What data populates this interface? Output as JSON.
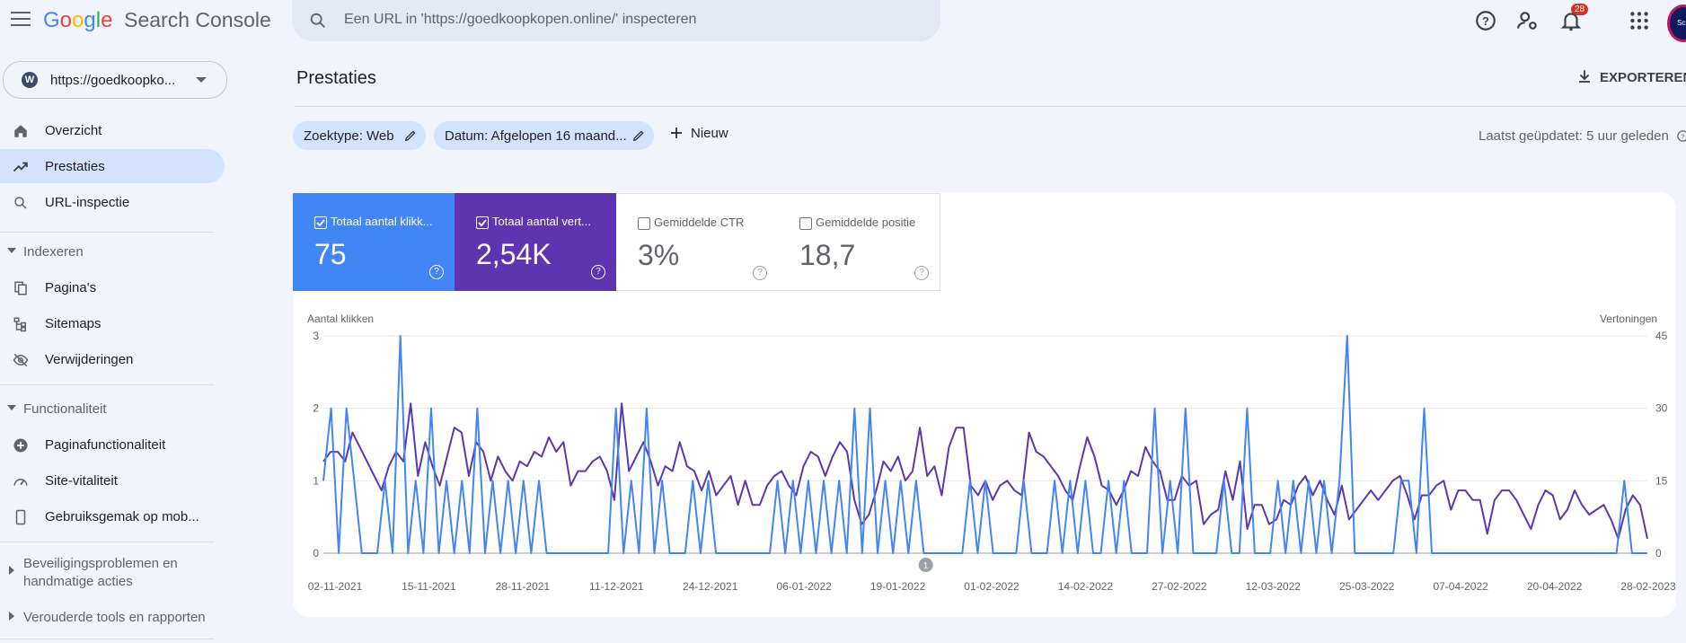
{
  "app": {
    "logo_letters": [
      "G",
      "o",
      "o",
      "g",
      "l",
      "e"
    ],
    "product": "Search Console"
  },
  "search": {
    "placeholder": "Een URL in 'https://goedkoopkopen.online/' inspecteren"
  },
  "header": {
    "notification_count": "28",
    "avatar_text": "Sch"
  },
  "property": {
    "url": "https://goedkoopko..."
  },
  "sidebar": {
    "items": [
      {
        "label": "Overzicht",
        "icon": "home-icon"
      },
      {
        "label": "Prestaties",
        "icon": "trending-up-icon",
        "active": true
      },
      {
        "label": "URL-inspectie",
        "icon": "search-icon"
      }
    ],
    "section_indexeren": "Indexeren",
    "indexeren_items": [
      {
        "label": "Pagina's",
        "icon": "pages-icon"
      },
      {
        "label": "Sitemaps",
        "icon": "sitemap-icon"
      },
      {
        "label": "Verwijderingen",
        "icon": "visibility-off-icon"
      }
    ],
    "section_functionaliteit": "Functionaliteit",
    "functionaliteit_items": [
      {
        "label": "Paginafunctionaliteit",
        "icon": "plus-circle-icon"
      },
      {
        "label": "Site-vitaliteit",
        "icon": "speed-icon"
      },
      {
        "label": "Gebruiksgemak op mob...",
        "icon": "phone-icon"
      }
    ],
    "section_beveiliging": "Beveiligingsproblemen en handmatige acties",
    "section_verouderd": "Verouderde tools en rapporten"
  },
  "main": {
    "title": "Prestaties",
    "export_label": "EXPORTEREN",
    "filters": [
      "Zoektype: Web",
      "Datum: Afgelopen 16 maand..."
    ],
    "new_label": "Nieuw",
    "last_updated": "Laatst geüpdatet: 5 uur geleden"
  },
  "metrics": [
    {
      "label": "Totaal aantal klikk...",
      "value": "75",
      "checked": true,
      "color": "#4285f4"
    },
    {
      "label": "Totaal aantal vert...",
      "value": "2,54K",
      "checked": true,
      "color": "#5e35b1"
    },
    {
      "label": "Gemiddelde CTR",
      "value": "3%",
      "checked": false
    },
    {
      "label": "Gemiddelde positie",
      "value": "18,7",
      "checked": false
    }
  ],
  "chart_data": {
    "type": "line",
    "left_axis_label": "Aantal klikken",
    "right_axis_label": "Vertoningen",
    "left_ticks": [
      "3",
      "2",
      "1",
      "0"
    ],
    "right_ticks": [
      "45",
      "30",
      "15",
      "0"
    ],
    "ylim_left": [
      0,
      3
    ],
    "ylim_right": [
      0,
      45
    ],
    "x_ticks": [
      "02-11-2021",
      "15-11-2021",
      "28-11-2021",
      "11-12-2021",
      "24-12-2021",
      "06-01-2022",
      "19-01-2022",
      "01-02-2022",
      "14-02-2022",
      "27-02-2022",
      "12-03-2022",
      "25-03-2022",
      "07-04-2022",
      "20-04-2022",
      "28-02-2023"
    ],
    "annotation": "1",
    "series": [
      {
        "name": "Totaal aantal klikk...",
        "color": "#4285f4",
        "values": [
          1,
          2,
          0,
          2,
          1,
          0,
          0,
          0,
          1,
          0,
          3,
          0,
          1,
          0,
          2,
          0,
          1,
          0,
          1,
          0,
          2,
          0,
          1,
          0,
          1,
          0,
          1,
          0,
          1,
          0,
          0,
          0,
          0,
          0,
          0,
          0,
          0,
          0,
          2,
          0,
          1,
          0,
          2,
          0,
          1,
          0,
          0,
          0,
          1,
          0,
          1,
          0,
          0,
          0,
          0,
          0,
          0,
          0,
          0,
          1,
          0,
          1,
          0,
          1,
          0,
          1,
          0,
          1,
          0,
          2,
          0,
          2,
          0,
          1,
          0,
          1,
          0,
          1,
          0,
          0,
          0,
          0,
          0,
          0,
          1,
          0,
          1,
          0,
          0,
          0,
          0,
          1,
          0,
          0,
          0,
          1,
          0,
          1,
          0,
          1,
          0,
          0,
          1,
          0,
          1,
          0,
          0,
          0,
          2,
          0,
          1,
          0,
          2,
          0,
          0,
          0,
          0,
          1,
          0,
          0,
          2,
          0,
          0,
          0,
          1,
          0,
          1,
          0,
          1,
          0,
          1,
          0,
          1,
          3,
          0,
          0,
          0,
          0,
          0,
          0,
          1,
          1,
          0,
          2,
          0,
          0,
          0,
          0,
          0,
          0,
          0,
          0,
          0,
          0,
          0,
          0,
          0,
          0,
          0,
          0,
          0,
          0,
          0,
          0,
          0,
          0,
          0,
          0,
          0,
          1,
          0,
          0,
          0
        ]
      },
      {
        "name": "Totaal aantal vert...",
        "color": "#5e35b1",
        "values": [
          19,
          21,
          21,
          19,
          25,
          22,
          19,
          16,
          13,
          18,
          21,
          19,
          31,
          16,
          23,
          18,
          14,
          20,
          26,
          25,
          16,
          23,
          21,
          15,
          20,
          17,
          15,
          19,
          18,
          21,
          20,
          24,
          21,
          23,
          14,
          17,
          17,
          19,
          20,
          17,
          11,
          31,
          17,
          20,
          23,
          19,
          14,
          18,
          17,
          23,
          18,
          17,
          13,
          17,
          12,
          14,
          16,
          10,
          15,
          10,
          10,
          14,
          16,
          17,
          14,
          12,
          18,
          21,
          20,
          16,
          20,
          23,
          21,
          11,
          6,
          8,
          13,
          19,
          17,
          20,
          15,
          17,
          26,
          16,
          18,
          12,
          22,
          26,
          26,
          14,
          12,
          15,
          11,
          14,
          15,
          13,
          12,
          25,
          21,
          20,
          18,
          16,
          13,
          11,
          18,
          24,
          20,
          14,
          13,
          10,
          13,
          17,
          16,
          22,
          19,
          17,
          11,
          11,
          16,
          14,
          15,
          6,
          8,
          9,
          17,
          11,
          19,
          5,
          10,
          10,
          6,
          7,
          11,
          10,
          14,
          16,
          12,
          15,
          11,
          8,
          14,
          7,
          9,
          11,
          13,
          11,
          13,
          15,
          16,
          12,
          7,
          12,
          12,
          14,
          15,
          9,
          13,
          13,
          11,
          11,
          4,
          11,
          13,
          13,
          11,
          8,
          5,
          10,
          13,
          12,
          7,
          9,
          13,
          10,
          8,
          9,
          10,
          7,
          3,
          9,
          12,
          10,
          3
        ]
      }
    ]
  }
}
